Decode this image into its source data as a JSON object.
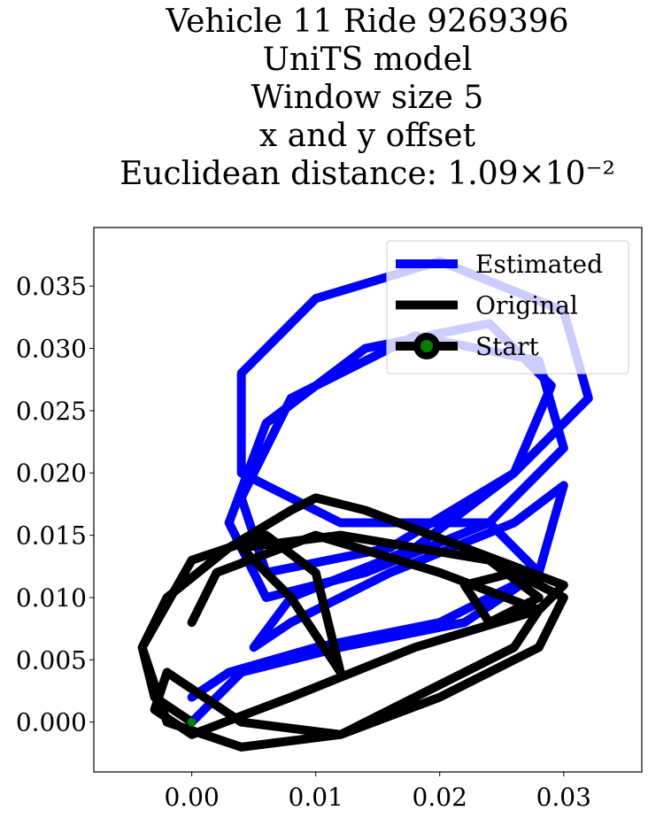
{
  "chart_data": {
    "type": "line",
    "title": [
      "Vehicle 11 Ride 9269396",
      "UniTS model",
      "Window size 5",
      "x and y offset",
      "Euclidean distance: 1.09×10⁻²"
    ],
    "xlim": [
      -0.0079,
      0.0363
    ],
    "ylim": [
      -0.004,
      0.0397
    ],
    "xticks": [
      {
        "value": 0,
        "label": "0.00"
      },
      {
        "value": 0.01,
        "label": "0.01"
      },
      {
        "value": 0.02,
        "label": "0.02"
      },
      {
        "value": 0.03,
        "label": "0.03"
      }
    ],
    "yticks": [
      {
        "value": 0,
        "label": "0.000"
      },
      {
        "value": 0.005,
        "label": "0.005"
      },
      {
        "value": 0.01,
        "label": "0.010"
      },
      {
        "value": 0.015,
        "label": "0.015"
      },
      {
        "value": 0.02,
        "label": "0.020"
      },
      {
        "value": 0.025,
        "label": "0.025"
      },
      {
        "value": 0.03,
        "label": "0.030"
      },
      {
        "value": 0.035,
        "label": "0.035"
      }
    ],
    "legend": "upper right",
    "series": [
      {
        "name": "Estimated",
        "color": "#0000ff",
        "x": [
          0,
          0.004,
          0.012,
          0.022,
          0.028,
          0.024,
          0.012,
          0.004,
          0.004,
          0.01,
          0.02,
          0.03,
          0.032,
          0.026,
          0.016,
          0.006,
          0.004,
          0.008,
          0.018,
          0.028,
          0.03,
          0.024,
          0.014,
          0.006,
          0.003,
          0.006,
          0.014,
          0.024,
          0.029,
          0.026,
          0.018,
          0.008,
          0.005,
          0.008,
          0.016,
          0.026,
          0.03,
          0.028,
          0.02,
          0.01,
          0.003,
          0
        ],
        "values": [
          0,
          0.004,
          0.006,
          0.008,
          0.012,
          0.016,
          0.016,
          0.02,
          0.028,
          0.034,
          0.037,
          0.033,
          0.026,
          0.02,
          0.014,
          0.012,
          0.018,
          0.026,
          0.031,
          0.029,
          0.022,
          0.016,
          0.012,
          0.01,
          0.016,
          0.024,
          0.03,
          0.032,
          0.027,
          0.02,
          0.014,
          0.01,
          0.006,
          0.008,
          0.012,
          0.016,
          0.019,
          0.012,
          0.008,
          0.006,
          0.004,
          0.002
        ]
      },
      {
        "name": "Original",
        "color": "#000000",
        "x": [
          0,
          -0.003,
          -0.004,
          -0.002,
          0.003,
          0.008,
          0.01,
          0.014,
          0.022,
          0.03,
          0.028,
          0.018,
          0.008,
          0,
          -0.003,
          -0.002,
          0.004,
          0.012,
          0.02,
          0.028,
          0.03,
          0.026,
          0.022,
          0.024,
          0.028,
          0.024,
          0.012,
          0.004,
          0.008,
          0.012,
          0.01,
          0.006,
          0,
          -0.004,
          -0.002,
          0.004,
          0.012,
          0.02,
          0.026,
          0.028,
          0.02,
          0.01,
          0.002,
          0
        ],
        "values": [
          0,
          0.002,
          0.006,
          0.01,
          0.014,
          0.017,
          0.018,
          0.017,
          0.014,
          0.011,
          0.009,
          0.006,
          0.002,
          -0.001,
          0.001,
          0.004,
          0,
          -0.001,
          0.002,
          0.006,
          0.01,
          0.012,
          0.011,
          0.008,
          0.01,
          0.013,
          0.015,
          0.014,
          0.01,
          0.004,
          0.012,
          0.015,
          0.013,
          0.006,
          0,
          -0.002,
          -0.001,
          0.003,
          0.006,
          0.009,
          0.012,
          0.015,
          0.012,
          0.008
        ]
      },
      {
        "name": "Start",
        "color": "#000000",
        "marker_color": "#008000",
        "x": [
          0
        ],
        "values": [
          0
        ]
      }
    ]
  }
}
